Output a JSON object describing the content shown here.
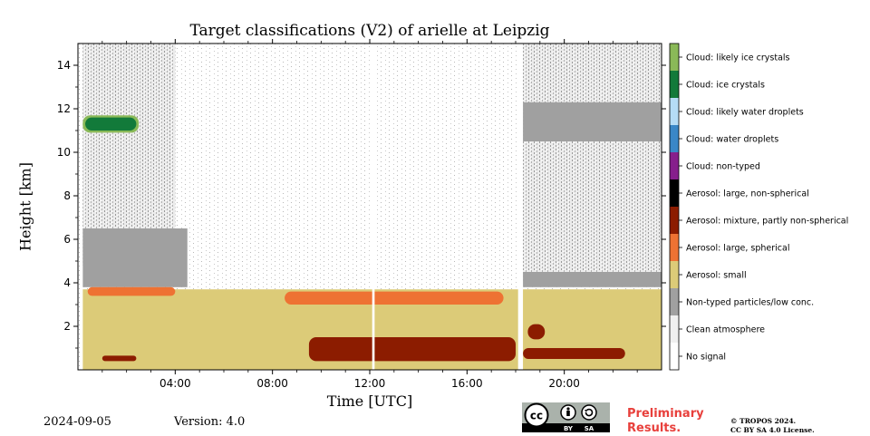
{
  "chart_data": {
    "type": "heatmap",
    "title": "Target classifications (V2) of arielle at Leipzig",
    "xlabel": "Time [UTC]",
    "ylabel": "Height [km]",
    "xlim": [
      0,
      24
    ],
    "ylim": [
      0,
      15
    ],
    "x_ticks": [
      {
        "value": 4,
        "label": "04:00"
      },
      {
        "value": 8,
        "label": "08:00"
      },
      {
        "value": 12,
        "label": "12:00"
      },
      {
        "value": 16,
        "label": "16:00"
      },
      {
        "value": 20,
        "label": "20:00"
      }
    ],
    "y_ticks": [
      {
        "value": 2,
        "label": "2"
      },
      {
        "value": 4,
        "label": "4"
      },
      {
        "value": 6,
        "label": "6"
      },
      {
        "value": 8,
        "label": "8"
      },
      {
        "value": 10,
        "label": "10"
      },
      {
        "value": 12,
        "label": "12"
      },
      {
        "value": 14,
        "label": "14"
      }
    ],
    "legend_placement": "right colorbar",
    "classes": [
      {
        "label": "No signal",
        "color": "#ffffff"
      },
      {
        "label": "Clean atmosphere",
        "color": "#f0f0f0"
      },
      {
        "label": "Non-typed particles/low conc.",
        "color": "#a0a0a0"
      },
      {
        "label": "Aerosol: small",
        "color": "#dccb78"
      },
      {
        "label": "Aerosol: large, spherical",
        "color": "#ee7233"
      },
      {
        "label": "Aerosol: mixture, partly non-spherical",
        "color": "#8c1c00"
      },
      {
        "label": "Aerosol: large, non-spherical",
        "color": "#000000"
      },
      {
        "label": "Cloud: non-typed",
        "color": "#861f8c"
      },
      {
        "label": "Cloud: water droplets",
        "color": "#3a87c7"
      },
      {
        "label": "Cloud: likely water droplets",
        "color": "#b5dcf6"
      },
      {
        "label": "Cloud: ice crystals",
        "color": "#127a3a"
      },
      {
        "label": "Cloud: likely ice crystals",
        "color": "#8ab958"
      }
    ],
    "regions": [
      {
        "class": "Clean atmosphere",
        "x": [
          0.2,
          4.0
        ],
        "y": [
          4.8,
          15.0
        ]
      },
      {
        "class": "Clean atmosphere",
        "x": [
          18.3,
          24.0
        ],
        "y": [
          4.0,
          15.0
        ]
      },
      {
        "class": "Non-typed particles/low conc.",
        "x": [
          0.2,
          4.5
        ],
        "y": [
          3.8,
          6.5
        ]
      },
      {
        "class": "Non-typed particles/low conc.",
        "x": [
          18.3,
          24.0
        ],
        "y": [
          3.8,
          4.5
        ]
      },
      {
        "class": "Non-typed particles/low conc.",
        "x": [
          18.3,
          24.0
        ],
        "y": [
          10.5,
          12.3
        ]
      },
      {
        "class": "Aerosol: small",
        "x": [
          0.2,
          24.0
        ],
        "y": [
          0,
          3.7
        ]
      },
      {
        "class": "Aerosol: large, spherical",
        "x": [
          0.4,
          4.0
        ],
        "y": [
          3.4,
          3.8
        ]
      },
      {
        "class": "Aerosol: large, spherical",
        "x": [
          8.5,
          17.5
        ],
        "y": [
          3.0,
          3.6
        ]
      },
      {
        "class": "Aerosol: mixture, partly non-spherical",
        "x": [
          1.0,
          2.4
        ],
        "y": [
          0.4,
          0.65
        ]
      },
      {
        "class": "Aerosol: mixture, partly non-spherical",
        "x": [
          9.5,
          18.0
        ],
        "y": [
          0.4,
          1.5
        ]
      },
      {
        "class": "Aerosol: mixture, partly non-spherical",
        "x": [
          18.3,
          22.5
        ],
        "y": [
          0.5,
          1.0
        ]
      },
      {
        "class": "Aerosol: mixture, partly non-spherical",
        "x": [
          18.5,
          19.2
        ],
        "y": [
          1.4,
          2.1
        ]
      },
      {
        "class": "Cloud: likely ice crystals",
        "x": [
          0.2,
          2.5
        ],
        "y": [
          10.9,
          11.7
        ]
      },
      {
        "class": "Cloud: ice crystals",
        "x": [
          0.3,
          2.4
        ],
        "y": [
          11.0,
          11.6
        ]
      },
      {
        "class": "No signal",
        "x": [
          12.1,
          12.2
        ],
        "y": [
          0,
          15
        ]
      },
      {
        "class": "No signal",
        "x": [
          18.1,
          18.3
        ],
        "y": [
          0,
          15
        ]
      }
    ]
  },
  "footer": {
    "date": "2024-09-05",
    "version": "Version: 4.0",
    "preliminary_line1": "Preliminary",
    "preliminary_line2": "Results.",
    "copyright_line1": "© TROPOS 2024.",
    "copyright_line2": "CC BY SA 4.0 License.",
    "cc_text": "cc",
    "by_text": "BY",
    "sa_text": "SA"
  }
}
